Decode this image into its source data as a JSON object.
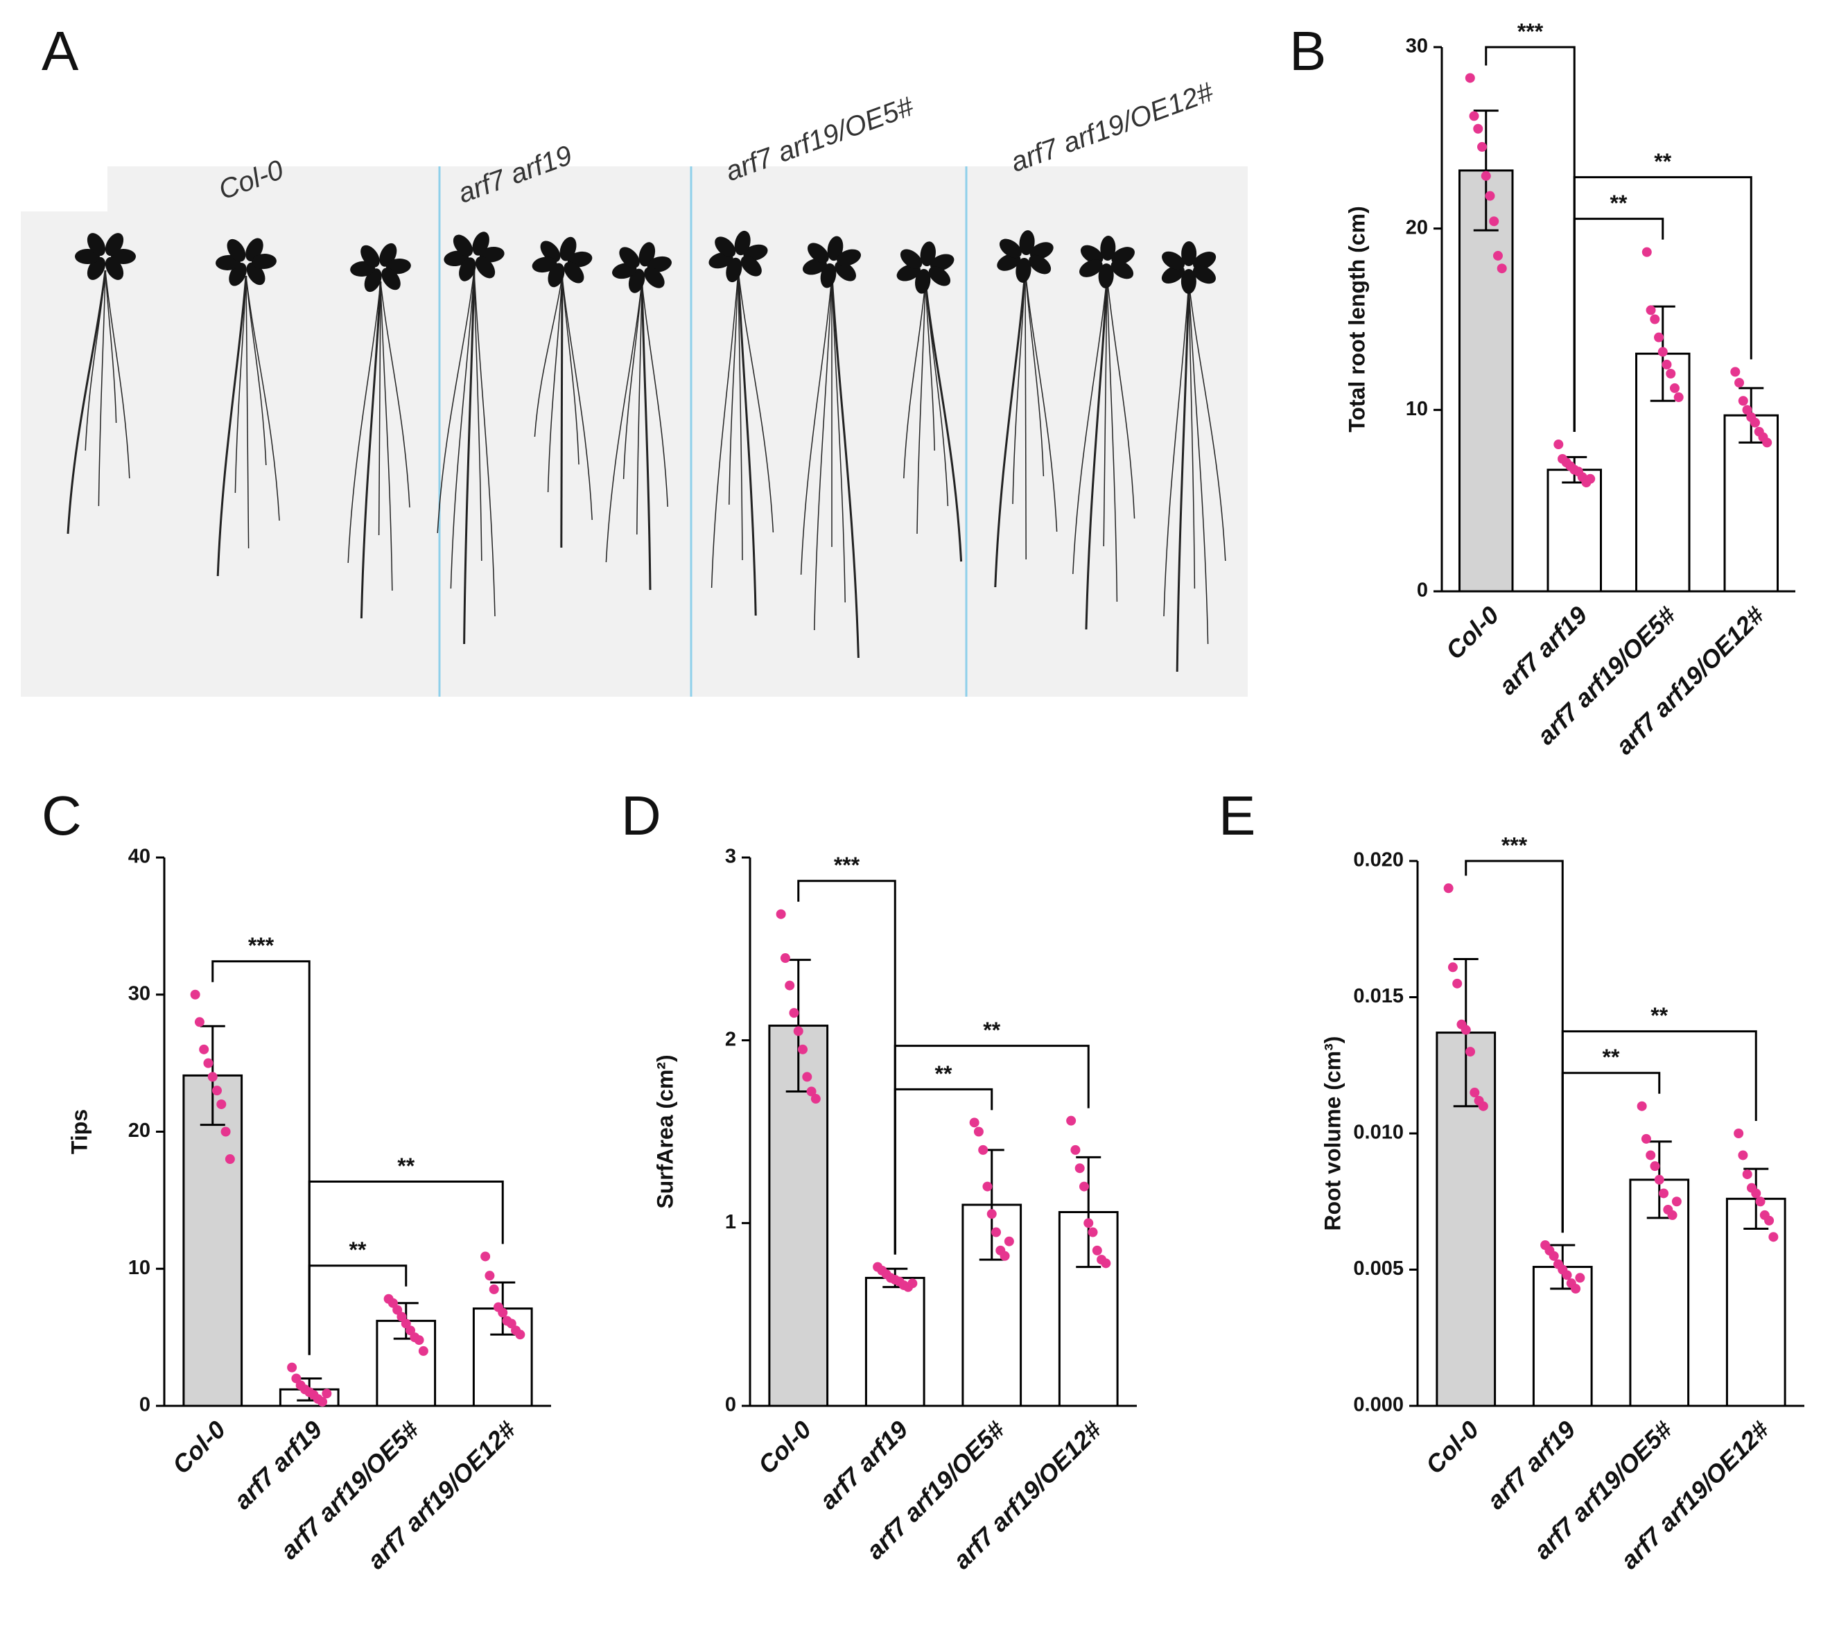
{
  "figure": {
    "photo_panel": "A",
    "genotypes": [
      "Col-0",
      "arf7 arf19",
      "arf7 arf19/OE5#",
      "arf7 arf19/OE12#"
    ]
  },
  "chart_data": [
    {
      "type": "bar",
      "panel": "B",
      "ylabel": "Total root length (cm)",
      "categories": [
        "Col-0",
        "arf7 arf19",
        "arf7 arf19/OE5#",
        "arf7 arf19/OE12#"
      ],
      "colors": [
        "#d3d3d3",
        "#ffffff",
        "#ffffff",
        "#ffffff"
      ],
      "point_color": "#e6358f",
      "values": [
        23.2,
        6.7,
        13.1,
        9.7
      ],
      "errors": [
        3.3,
        0.7,
        2.6,
        1.5
      ],
      "points": [
        [
          28.3,
          26.2,
          25.5,
          24.5,
          22.9,
          21.8,
          20.4,
          18.5,
          17.8
        ],
        [
          8.1,
          7.3,
          7.1,
          6.9,
          6.7,
          6.6,
          6.3,
          6.0,
          6.2
        ],
        [
          18.7,
          15.5,
          15.0,
          14.0,
          13.2,
          12.5,
          12.0,
          11.2,
          10.7
        ],
        [
          12.1,
          11.5,
          10.5,
          10.0,
          9.6,
          9.3,
          8.8,
          8.5,
          8.2
        ]
      ],
      "ylim": [
        0,
        30
      ],
      "yticks": [
        0,
        10,
        20,
        30
      ],
      "brackets": [
        {
          "from": 0,
          "to": 1,
          "label": "***"
        },
        {
          "from": 1,
          "to": 2,
          "label": "**"
        },
        {
          "from": 1,
          "to": 3,
          "label": "**"
        }
      ]
    },
    {
      "type": "bar",
      "panel": "C",
      "ylabel": "Tips",
      "categories": [
        "Col-0",
        "arf7 arf19",
        "arf7 arf19/OE5#",
        "arf7 arf19/OE12#"
      ],
      "colors": [
        "#d3d3d3",
        "#ffffff",
        "#ffffff",
        "#ffffff"
      ],
      "point_color": "#e6358f",
      "values": [
        24.1,
        1.2,
        6.2,
        7.1
      ],
      "errors": [
        3.6,
        0.8,
        1.3,
        1.9
      ],
      "points": [
        [
          30,
          28,
          26,
          25,
          24,
          23,
          22,
          20,
          18
        ],
        [
          2.8,
          2,
          1.5,
          1.2,
          1,
          0.8,
          0.5,
          0.3,
          0.9
        ],
        [
          7.8,
          7.5,
          7,
          6.5,
          6,
          5.5,
          5,
          4.8,
          4
        ],
        [
          10.9,
          9.5,
          8.5,
          7.2,
          6.8,
          6.2,
          6,
          5.5,
          5.2
        ]
      ],
      "ylim": [
        0,
        40
      ],
      "yticks": [
        0,
        10,
        20,
        30,
        40
      ],
      "brackets": [
        {
          "from": 0,
          "to": 1,
          "label": "***"
        },
        {
          "from": 1,
          "to": 2,
          "label": "**"
        },
        {
          "from": 1,
          "to": 3,
          "label": "**"
        }
      ]
    },
    {
      "type": "bar",
      "panel": "D",
      "ylabel": "SurfArea (cm²)",
      "categories": [
        "Col-0",
        "arf7 arf19",
        "arf7 arf19/OE5#",
        "arf7 arf19/OE12#"
      ],
      "colors": [
        "#d3d3d3",
        "#ffffff",
        "#ffffff",
        "#ffffff"
      ],
      "point_color": "#e6358f",
      "values": [
        2.08,
        0.7,
        1.1,
        1.06
      ],
      "errors": [
        0.36,
        0.05,
        0.3,
        0.3
      ],
      "points": [
        [
          2.69,
          2.45,
          2.3,
          2.15,
          2.05,
          1.95,
          1.8,
          1.72,
          1.68
        ],
        [
          0.76,
          0.74,
          0.72,
          0.7,
          0.69,
          0.68,
          0.66,
          0.65,
          0.67
        ],
        [
          1.55,
          1.5,
          1.4,
          1.2,
          1.05,
          0.95,
          0.85,
          0.82,
          0.9
        ],
        [
          1.56,
          1.4,
          1.3,
          1.2,
          1.0,
          0.95,
          0.85,
          0.8,
          0.78
        ]
      ],
      "ylim": [
        0,
        3
      ],
      "yticks": [
        0,
        1,
        2,
        3
      ],
      "brackets": [
        {
          "from": 0,
          "to": 1,
          "label": "***"
        },
        {
          "from": 1,
          "to": 2,
          "label": "**"
        },
        {
          "from": 1,
          "to": 3,
          "label": "**"
        }
      ]
    },
    {
      "type": "bar",
      "panel": "E",
      "ylabel": "Root volume (cm³)",
      "categories": [
        "Col-0",
        "arf7 arf19",
        "arf7 arf19/OE5#",
        "arf7 arf19/OE12#"
      ],
      "colors": [
        "#d3d3d3",
        "#ffffff",
        "#ffffff",
        "#ffffff"
      ],
      "point_color": "#e6358f",
      "values": [
        0.0137,
        0.0051,
        0.0083,
        0.0076
      ],
      "errors": [
        0.0027,
        0.0008,
        0.0014,
        0.0011
      ],
      "points": [
        [
          0.019,
          0.0161,
          0.0155,
          0.014,
          0.0138,
          0.013,
          0.0115,
          0.0112,
          0.011
        ],
        [
          0.0059,
          0.0057,
          0.0055,
          0.0052,
          0.005,
          0.0048,
          0.0045,
          0.0043,
          0.0047
        ],
        [
          0.011,
          0.0098,
          0.0092,
          0.0088,
          0.0083,
          0.0078,
          0.0072,
          0.007,
          0.0075
        ],
        [
          0.01,
          0.0092,
          0.0085,
          0.008,
          0.0078,
          0.0075,
          0.007,
          0.0068,
          0.0062
        ]
      ],
      "ylim": [
        0,
        0.02
      ],
      "yticks": [
        {
          "value": 0,
          "label": "0.000"
        },
        0.005,
        {
          "value": 0.01,
          "label": "0.010"
        },
        0.015,
        {
          "value": 0.02,
          "label": "0.020"
        }
      ],
      "brackets": [
        {
          "from": 0,
          "to": 1,
          "label": "***"
        },
        {
          "from": 1,
          "to": 2,
          "label": "**"
        },
        {
          "from": 1,
          "to": 3,
          "label": "**"
        }
      ]
    }
  ]
}
